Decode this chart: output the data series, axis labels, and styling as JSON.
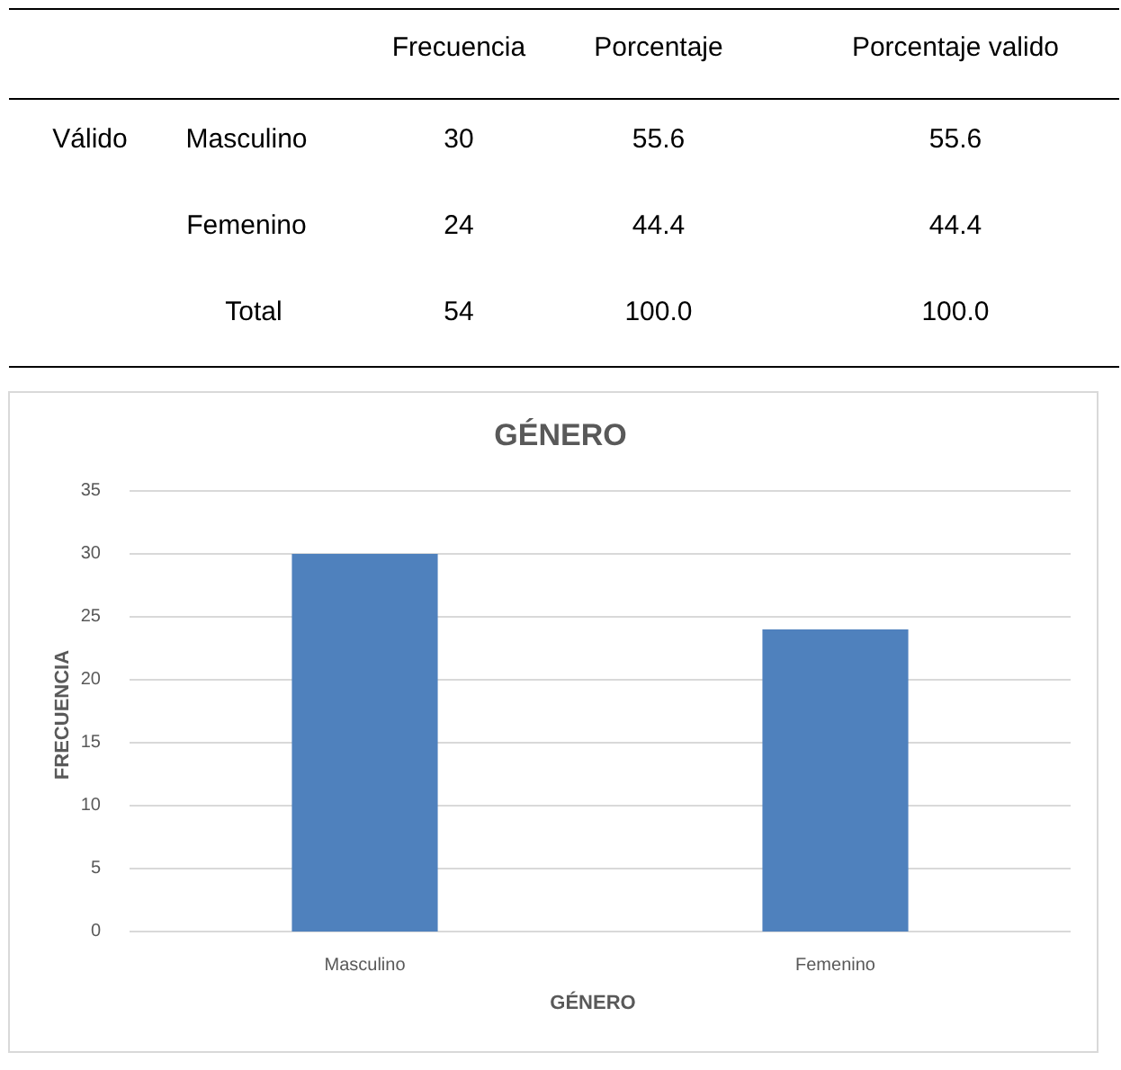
{
  "chart_data": [
    {
      "type": "other",
      "annotations": [
        "Frecuencia",
        "Porcentaje",
        "Porcentaje valido",
        "Válido",
        "Masculino",
        "30",
        "55.6",
        "55.6",
        "Femenino",
        "24",
        "44.4",
        "44.4",
        "Total",
        "54",
        "100.0",
        "100.0"
      ]
    },
    {
      "type": "bar",
      "title": "GÉNERO",
      "xlabel": "GÉNERO",
      "ylabel": "FRECUENCIA",
      "categories": [
        "Masculino",
        "Femenino"
      ],
      "values": [
        30,
        24
      ],
      "color": "#4f81bd",
      "ylim": [
        0,
        35
      ],
      "yticks": [
        0,
        5,
        10,
        15,
        20,
        25,
        30,
        35
      ],
      "grid": "y"
    }
  ]
}
